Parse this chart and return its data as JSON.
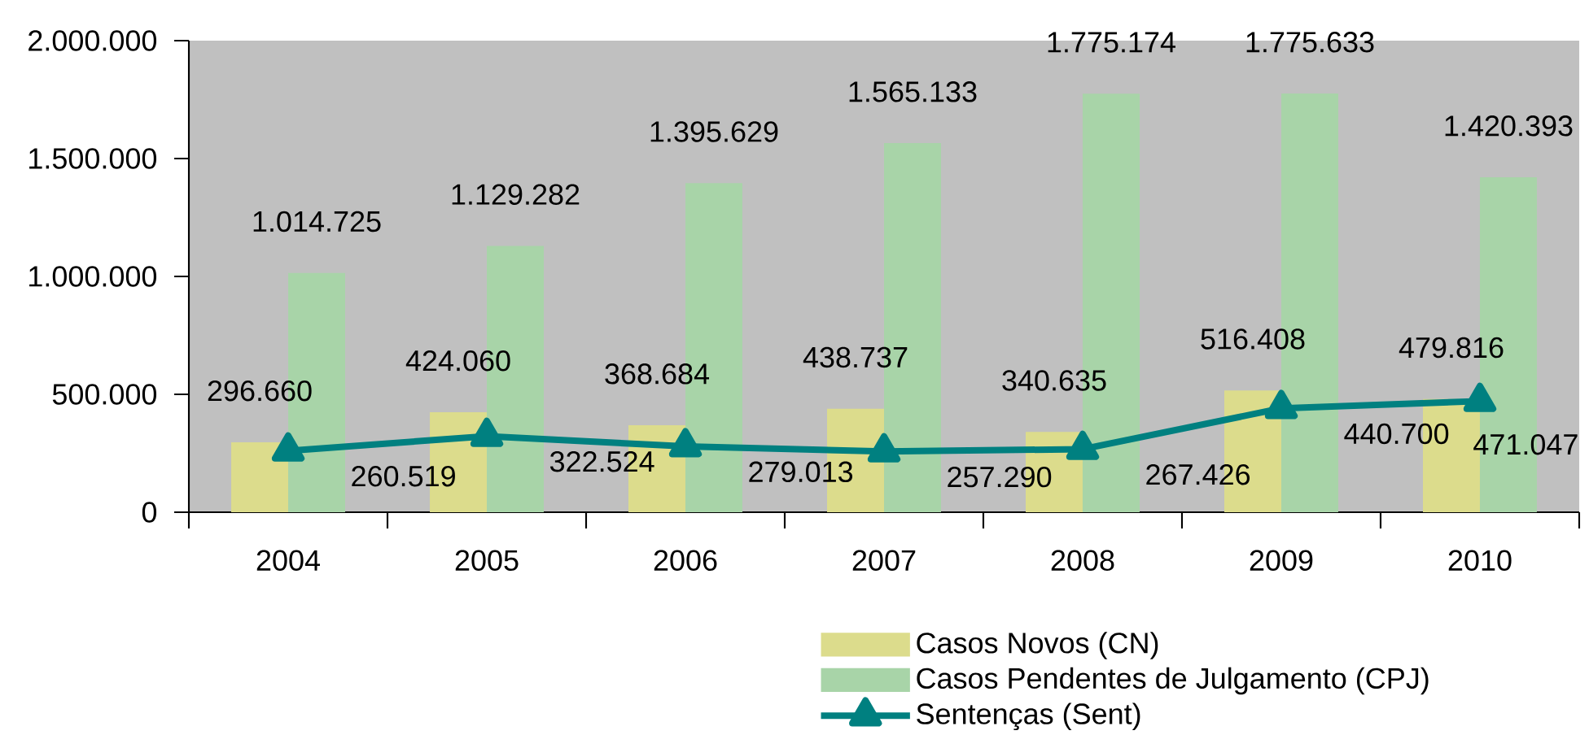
{
  "chart_data": {
    "type": "bar",
    "categories": [
      "2004",
      "2005",
      "2006",
      "2007",
      "2008",
      "2009",
      "2010"
    ],
    "series": [
      {
        "name": "Casos Novos (CN)",
        "color": "#dcdc8c",
        "values": [
          296660,
          424060,
          368684,
          438737,
          340635,
          516408,
          479816
        ],
        "value_labels": [
          "296.660",
          "424.060",
          "368.684",
          "438.737",
          "340.635",
          "516.408",
          "479.816"
        ]
      },
      {
        "name": "Casos Pendentes de Julgamento (CPJ)",
        "color": "#a8d4a8",
        "values": [
          1014725,
          1129282,
          1395629,
          1565133,
          1775174,
          1775633,
          1420393
        ],
        "value_labels": [
          "1.014.725",
          "1.129.282",
          "1.395.629",
          "1.565.133",
          "1.775.174",
          "1.775.633",
          "1.420.393"
        ]
      },
      {
        "name": "Sentenças (Sent)",
        "type": "line",
        "color": "#008080",
        "marker": "triangle",
        "values": [
          260519,
          322524,
          279013,
          257290,
          267426,
          440700,
          471047
        ],
        "value_labels": [
          "260.519",
          "322.524",
          "279.013",
          "257.290",
          "267.426",
          "440.700",
          "471.047"
        ]
      }
    ],
    "ylim": [
      0,
      2000000
    ],
    "yticks": [
      0,
      {
        "value": 500000,
        "label": "500.000"
      },
      {
        "value": 1000000,
        "label": "1.000.000"
      },
      {
        "value": 1500000,
        "label": "1.500.000"
      },
      {
        "value": 2000000,
        "label": "2.000.000"
      }
    ],
    "legend": "bottom"
  }
}
